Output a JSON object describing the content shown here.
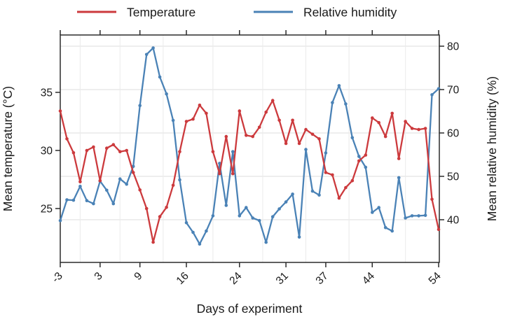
{
  "chart_data": {
    "type": "line",
    "title": "",
    "xlabel": "Days of experiment",
    "ylabel_left": "Mean temperature (°C)",
    "ylabel_right": "Mean relative humidity (%)",
    "x_ticks": [
      -3,
      3,
      9,
      16,
      24,
      31,
      37,
      44,
      54
    ],
    "yleft_ticks": [
      25,
      30,
      35
    ],
    "yright_ticks": [
      40,
      50,
      60,
      70,
      80
    ],
    "yleft_range": [
      20.4,
      39.9
    ],
    "yright_range": [
      30.2,
      82.6
    ],
    "x_range": [
      -3,
      54
    ],
    "grid": {
      "horizontal_major": true,
      "vertical_minor": true
    },
    "legend_position": "top",
    "x": [
      -3,
      -2,
      -1,
      0,
      1,
      2,
      3,
      4,
      5,
      6,
      7,
      8,
      9,
      10,
      11,
      12,
      13,
      14,
      15,
      16,
      17,
      18,
      19,
      20,
      21,
      22,
      23,
      24,
      25,
      26,
      27,
      28,
      29,
      30,
      31,
      32,
      33,
      34,
      35,
      36,
      37,
      38,
      39,
      40,
      41,
      42,
      43,
      44,
      45,
      46,
      47,
      48,
      49,
      50,
      51,
      52,
      53,
      54
    ],
    "series": [
      {
        "name": "Temperature",
        "axis": "left",
        "color": "#cc3a3d",
        "values": [
          33.4,
          31.0,
          29.8,
          27.3,
          30.0,
          30.3,
          27.4,
          30.2,
          30.5,
          29.9,
          30.0,
          28.1,
          26.6,
          25.0,
          22.1,
          24.3,
          25.1,
          27.0,
          29.9,
          32.5,
          32.7,
          33.9,
          33.2,
          29.9,
          28.0,
          31.2,
          28.0,
          33.4,
          31.3,
          31.2,
          32.0,
          33.3,
          34.3,
          32.6,
          30.6,
          32.6,
          30.6,
          31.8,
          31.4,
          31.0,
          28.1,
          27.9,
          25.9,
          26.8,
          27.4,
          29.1,
          29.6,
          32.8,
          32.4,
          31.2,
          33.2,
          29.3,
          32.5,
          31.9,
          31.8,
          31.9,
          25.8,
          23.2
        ]
      },
      {
        "name": "Relative humidity",
        "axis": "right",
        "color": "#4a82b6",
        "values": [
          39.8,
          44.6,
          44.5,
          47.7,
          44.4,
          43.7,
          48.9,
          46.8,
          43.7,
          49.4,
          48.2,
          52.3,
          66.3,
          78.1,
          79.6,
          72.9,
          69.0,
          62.9,
          49.2,
          39.3,
          37.1,
          34.4,
          37.4,
          40.9,
          53.0,
          43.3,
          55.7,
          40.9,
          42.8,
          40.4,
          39.8,
          34.8,
          40.7,
          42.5,
          44.1,
          45.9,
          36.0,
          56.2,
          46.6,
          45.7,
          55.4,
          67.0,
          70.9,
          66.7,
          58.9,
          54.6,
          52.1,
          41.7,
          42.8,
          38.2,
          37.4,
          49.7,
          40.4,
          40.9,
          40.9,
          41.0,
          68.8,
          70.2
        ]
      }
    ],
    "colors": {
      "temperature": "#cc3a3d",
      "humidity": "#4a82b6",
      "axis": "#2b2b2b",
      "text": "#1a1a1a",
      "grid_major": "#e3e3e3",
      "grid_minor": "#ececec"
    }
  }
}
